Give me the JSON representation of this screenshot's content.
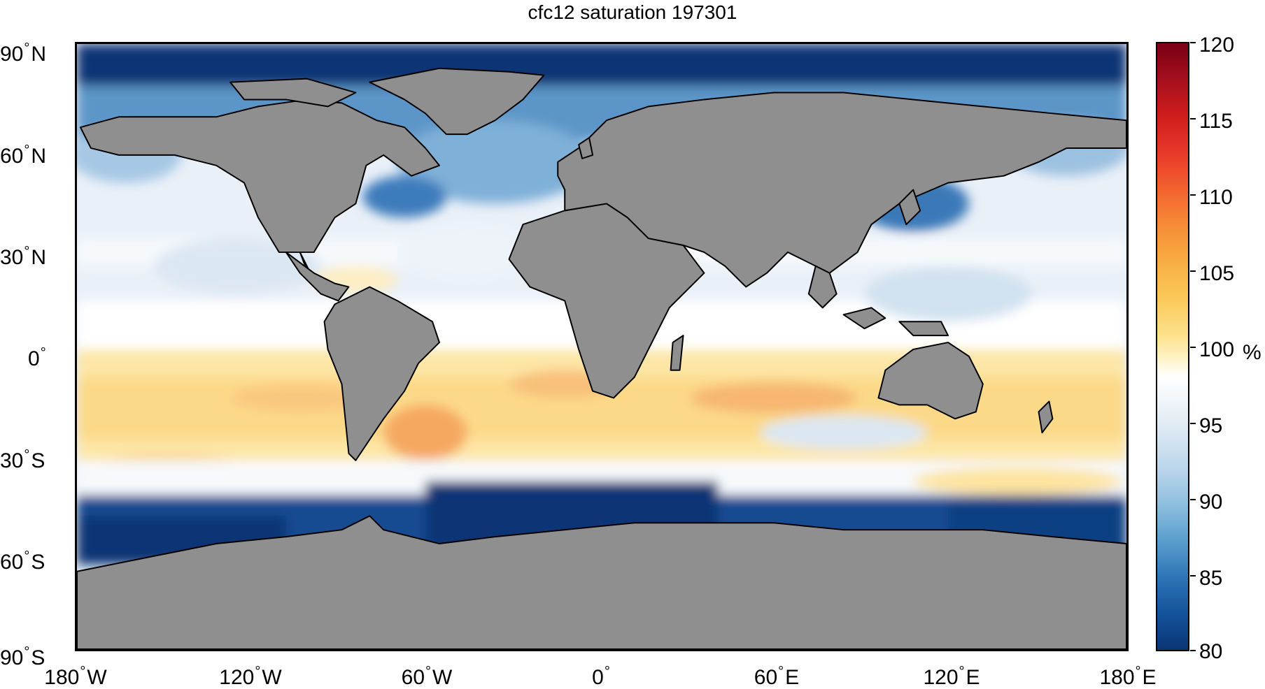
{
  "title": "cfc12 saturation 197301",
  "lat_labels": [
    {
      "value": "90",
      "hemi": "N"
    },
    {
      "value": "60",
      "hemi": "N"
    },
    {
      "value": "30",
      "hemi": "N"
    },
    {
      "value": "0",
      "hemi": ""
    },
    {
      "value": "30",
      "hemi": "S"
    },
    {
      "value": "60",
      "hemi": "S"
    },
    {
      "value": "90",
      "hemi": "S"
    }
  ],
  "lon_labels": [
    {
      "value": "180",
      "hemi": "W"
    },
    {
      "value": "120",
      "hemi": "W"
    },
    {
      "value": "60",
      "hemi": "W"
    },
    {
      "value": "0",
      "hemi": ""
    },
    {
      "value": "60",
      "hemi": "E"
    },
    {
      "value": "120",
      "hemi": "E"
    },
    {
      "value": "180",
      "hemi": "E"
    }
  ],
  "colorbar": {
    "ticks": [
      "120",
      "115",
      "110",
      "105",
      "100",
      "95",
      "90",
      "85",
      "80"
    ],
    "range": [
      80,
      120
    ],
    "unit": "%",
    "colormap": [
      "#0a3474",
      "#2e75b6",
      "#8fbede",
      "#ffffff",
      "#fde08a",
      "#f68c36",
      "#d01d1d",
      "#7a0016"
    ]
  },
  "colors": {
    "land": "#8f8f8f",
    "ocean_default": "#e6eef7",
    "coastline": "#000000"
  }
}
